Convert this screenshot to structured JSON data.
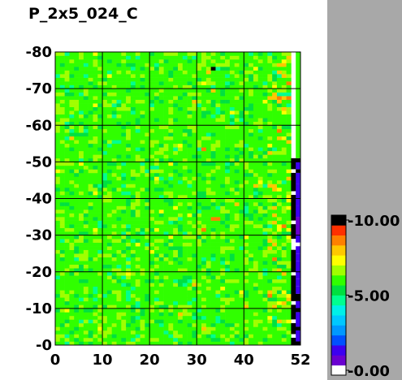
{
  "chart_data": {
    "type": "heatmap",
    "title": "P_2x5_024_C",
    "xlabel": "",
    "ylabel": "",
    "x_range": [
      0,
      52
    ],
    "y_range": [
      0,
      80
    ],
    "x_ticks": [
      0,
      10,
      20,
      30,
      40,
      52
    ],
    "x_tick_labels": [
      "0",
      "10",
      "20",
      "30",
      "40",
      "52"
    ],
    "y_ticks": [
      0,
      10,
      20,
      30,
      40,
      50,
      60,
      70,
      80
    ],
    "y_tick_labels": [
      "-0",
      "-10",
      "-20",
      "-30",
      "-40",
      "-50",
      "-60",
      "-70",
      "-80"
    ],
    "grid": true,
    "colorbar": {
      "min": 0.0,
      "max": 10.0,
      "tick_values": [
        0,
        5,
        10
      ],
      "tick_labels": [
        "0.00",
        "5.00",
        "10.00"
      ],
      "colors": [
        "#ffffff",
        "#6a00d0",
        "#3c00f0",
        "#0050ff",
        "#0098ff",
        "#00c8ff",
        "#00f0e8",
        "#00ff90",
        "#00e040",
        "#30ff00",
        "#a0ff00",
        "#ffff00",
        "#ffc800",
        "#ff8000",
        "#ff3000",
        "#000000"
      ]
    },
    "typical_value": 5.7,
    "description_values": {
      "background_cells": "mostly 5.5-6.5 (cyan/teal)",
      "right_column_x52": "low values 0.5-2 (blue/purple) with high spikes (10, black) near y=10-50"
    },
    "hot_cells": [
      {
        "x": 33,
        "y": 75,
        "value": 10.0
      },
      {
        "x": 32,
        "y": 74,
        "value": 8.5
      },
      {
        "x": 49,
        "y": 78,
        "value": 8.5
      },
      {
        "x": 33,
        "y": 69,
        "value": 8.5
      },
      {
        "x": 31,
        "y": 53,
        "value": 9.2
      },
      {
        "x": 33,
        "y": 34,
        "value": 9.0
      },
      {
        "x": 34,
        "y": 34,
        "value": 8.6
      },
      {
        "x": 31,
        "y": 31,
        "value": 8.6
      },
      {
        "x": 38,
        "y": 38,
        "value": 8.3
      },
      {
        "x": 42,
        "y": 43,
        "value": 8.3
      },
      {
        "x": 45,
        "y": 14,
        "value": 8.4
      },
      {
        "x": 40,
        "y": 10,
        "value": 8.4
      },
      {
        "x": 31,
        "y": 4,
        "value": 8.3
      },
      {
        "x": 29,
        "y": 16,
        "value": 8.0
      }
    ],
    "right_column": {
      "x": 51,
      "segments": [
        {
          "y0": 0,
          "y1": 1,
          "value": 10.0
        },
        {
          "y0": 1,
          "y1": 4,
          "value": 1.0
        },
        {
          "y0": 4,
          "y1": 5,
          "value": 10.0
        },
        {
          "y0": 5,
          "y1": 9,
          "value": 1.2
        },
        {
          "y0": 9,
          "y1": 10,
          "value": 10.0
        },
        {
          "y0": 10,
          "y1": 12,
          "value": 0.8
        },
        {
          "y0": 12,
          "y1": 14,
          "value": 10.0
        },
        {
          "y0": 14,
          "y1": 16,
          "value": 0.9
        },
        {
          "y0": 16,
          "y1": 18,
          "value": 1.3
        },
        {
          "y0": 18,
          "y1": 23,
          "value": 0.9
        },
        {
          "y0": 23,
          "y1": 25,
          "value": 1.4
        },
        {
          "y0": 25,
          "y1": 27,
          "value": 0.8
        },
        {
          "y0": 27,
          "y1": 28,
          "value": 0.0
        },
        {
          "y0": 28,
          "y1": 30,
          "value": 1.0
        },
        {
          "y0": 30,
          "y1": 35,
          "value": 0.7
        },
        {
          "y0": 35,
          "y1": 38,
          "value": 1.1
        },
        {
          "y0": 38,
          "y1": 41,
          "value": 0.8
        },
        {
          "y0": 41,
          "y1": 44,
          "value": 1.2
        },
        {
          "y0": 44,
          "y1": 47,
          "value": 1.0
        },
        {
          "y0": 47,
          "y1": 48,
          "value": 10.0
        },
        {
          "y0": 48,
          "y1": 50,
          "value": 1.0
        },
        {
          "y0": 50,
          "y1": 51,
          "value": 10.0
        },
        {
          "y0": 51,
          "y1": 80,
          "value": 5.8
        }
      ]
    },
    "black_column_x50": {
      "x": 50,
      "y_ranges": [
        [
          0,
          2
        ],
        [
          3,
          6
        ],
        [
          7,
          11
        ],
        [
          12,
          19
        ],
        [
          20,
          26
        ],
        [
          29,
          33
        ],
        [
          34,
          41
        ],
        [
          42,
          47
        ],
        [
          48,
          51
        ]
      ],
      "value": 10.0
    }
  }
}
